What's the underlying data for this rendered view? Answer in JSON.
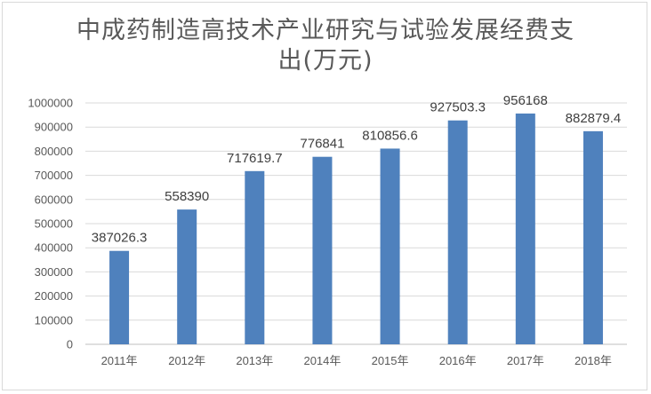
{
  "chart_data": {
    "type": "bar",
    "title_lines": [
      "中成药制造高技术产业研究与试验发展经费支",
      "出(万元)"
    ],
    "categories": [
      "2011年",
      "2012年",
      "2013年",
      "2014年",
      "2015年",
      "2016年",
      "2017年",
      "2018年"
    ],
    "values": [
      387026.3,
      558390,
      717619.7,
      776841,
      810856.6,
      927503.3,
      956168,
      882879.4
    ],
    "data_labels": [
      "387026.3",
      "558390",
      "717619.7",
      "776841",
      "810856.6",
      "927503.3",
      "956168",
      "882879.4"
    ],
    "ylim": [
      0,
      1000000
    ],
    "y_ticks": [
      0,
      100000,
      200000,
      300000,
      400000,
      500000,
      600000,
      700000,
      800000,
      900000,
      1000000
    ],
    "grid": true,
    "bar_color": "#4f81bd"
  }
}
